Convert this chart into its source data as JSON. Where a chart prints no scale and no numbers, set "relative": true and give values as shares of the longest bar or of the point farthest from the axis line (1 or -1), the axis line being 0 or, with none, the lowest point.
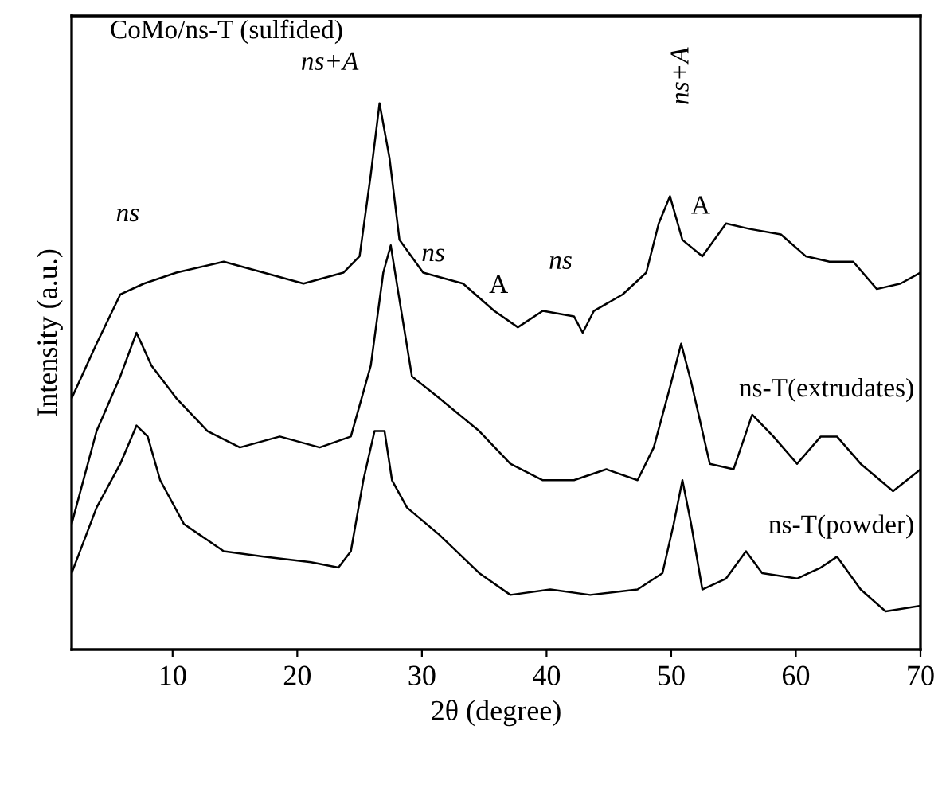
{
  "chart_data": {
    "type": "line",
    "relative": true,
    "xlabel": "2θ (degree)",
    "ylabel": "Intensity (a.u.)",
    "xlim": [
      1.9,
      70
    ],
    "xticks": [
      10,
      20,
      30,
      40,
      50,
      60,
      70
    ],
    "grid": false,
    "legend": false,
    "marker": "none",
    "line_style": "solid",
    "series": [
      {
        "name": "CoMo/ns-T (sulfided)",
        "color": "#000000",
        "x": [
          1.9,
          3.9,
          5.8,
          7.7,
          10.3,
          14.1,
          17.3,
          20.5,
          23.7,
          25.0,
          25.9,
          26.6,
          27.4,
          28.2,
          30.1,
          33.3,
          35.8,
          37.7,
          39.7,
          42.2,
          42.9,
          43.8,
          46.1,
          48.0,
          49.0,
          49.9,
          50.9,
          52.5,
          54.4,
          56.3,
          58.8,
          60.8,
          62.7,
          64.6,
          66.5,
          68.4,
          70.0
        ],
        "values": [
          0.46,
          0.56,
          0.65,
          0.67,
          0.69,
          0.71,
          0.69,
          0.67,
          0.69,
          0.72,
          0.87,
          1.0,
          0.9,
          0.75,
          0.69,
          0.67,
          0.62,
          0.59,
          0.62,
          0.61,
          0.58,
          0.62,
          0.65,
          0.69,
          0.78,
          0.83,
          0.75,
          0.72,
          0.78,
          0.77,
          0.76,
          0.72,
          0.71,
          0.71,
          0.66,
          0.67,
          0.69
        ]
      },
      {
        "name": "ns-T(extrudates)",
        "color": "#000000",
        "x": [
          1.9,
          3.9,
          5.8,
          7.1,
          8.3,
          10.3,
          12.8,
          15.4,
          18.6,
          21.8,
          24.3,
          25.9,
          26.9,
          27.5,
          28.2,
          29.2,
          31.4,
          34.6,
          37.1,
          39.7,
          42.2,
          44.8,
          47.3,
          48.6,
          49.9,
          50.8,
          51.6,
          53.1,
          55.0,
          56.5,
          58.2,
          60.1,
          62.0,
          63.3,
          65.2,
          67.8,
          70.0
        ],
        "values": [
          0.23,
          0.4,
          0.5,
          0.58,
          0.52,
          0.46,
          0.4,
          0.37,
          0.39,
          0.37,
          0.39,
          0.52,
          0.69,
          0.74,
          0.64,
          0.5,
          0.46,
          0.4,
          0.34,
          0.31,
          0.31,
          0.33,
          0.31,
          0.37,
          0.48,
          0.56,
          0.49,
          0.34,
          0.33,
          0.43,
          0.39,
          0.34,
          0.39,
          0.39,
          0.34,
          0.29,
          0.33
        ]
      },
      {
        "name": "ns-T(powder)",
        "color": "#000000",
        "x": [
          1.9,
          3.9,
          5.8,
          7.1,
          8.0,
          9.0,
          10.9,
          14.1,
          17.3,
          21.1,
          23.3,
          24.3,
          25.3,
          26.2,
          27.0,
          27.6,
          28.8,
          31.4,
          34.6,
          37.1,
          40.3,
          43.5,
          47.3,
          49.3,
          50.2,
          50.9,
          51.6,
          52.5,
          54.4,
          56.0,
          57.3,
          60.1,
          62.0,
          63.3,
          65.2,
          67.2,
          70.0
        ],
        "values": [
          0.14,
          0.26,
          0.34,
          0.41,
          0.39,
          0.31,
          0.23,
          0.18,
          0.17,
          0.16,
          0.15,
          0.18,
          0.31,
          0.4,
          0.4,
          0.31,
          0.26,
          0.21,
          0.14,
          0.1,
          0.11,
          0.1,
          0.11,
          0.14,
          0.23,
          0.31,
          0.23,
          0.11,
          0.13,
          0.18,
          0.14,
          0.13,
          0.15,
          0.17,
          0.11,
          0.07,
          0.08
        ]
      }
    ],
    "annotations": [
      "ns",
      "ns+A",
      "ns",
      "A",
      "ns",
      "ns+A",
      "A"
    ]
  }
}
